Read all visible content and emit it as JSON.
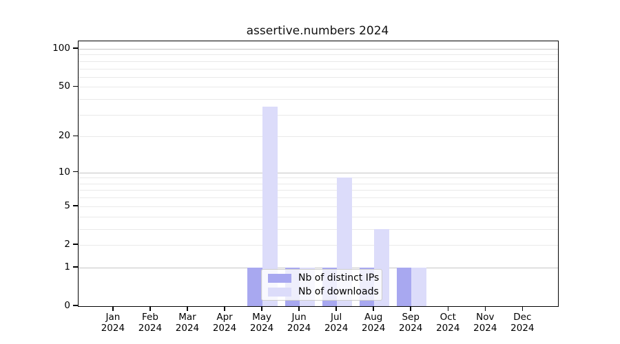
{
  "title": "assertive.numbers 2024",
  "chart_data": {
    "type": "bar",
    "title": "assertive.numbers 2024",
    "scale": "log10(1+y)",
    "categories": [
      "Jan",
      "Feb",
      "Mar",
      "Apr",
      "May",
      "Jun",
      "Jul",
      "Aug",
      "Sep",
      "Oct",
      "Nov",
      "Dec"
    ],
    "year": "2024",
    "series": [
      {
        "name": "Nb of distinct IPs",
        "values": [
          0,
          0,
          0,
          0,
          1,
          1,
          1,
          1,
          1,
          0,
          0,
          0
        ]
      },
      {
        "name": "Nb of downloads",
        "values": [
          0,
          0,
          0,
          0,
          35,
          1,
          9,
          3,
          1,
          0,
          0,
          0
        ]
      }
    ],
    "yticks": [
      0,
      1,
      2,
      5,
      10,
      20,
      50,
      100
    ],
    "grid_major": [
      1,
      10,
      100
    ],
    "grid_minor": [
      2,
      3,
      4,
      5,
      6,
      7,
      8,
      9,
      20,
      30,
      40,
      50,
      60,
      70,
      80,
      90
    ],
    "ylim": [
      0,
      114
    ],
    "xlabel": "",
    "ylabel": "",
    "legend_position": "lower center",
    "grid": "on"
  },
  "colors": {
    "ips": "#a8a8f0",
    "downloads": "#dcdcfa",
    "grid_major": "#c4c4c4",
    "grid_minor": "#e9e9e9",
    "spine": "#000000",
    "background": "#ffffff"
  },
  "legend": {
    "items": [
      {
        "label": "Nb of distinct IPs"
      },
      {
        "label": "Nb of downloads"
      }
    ]
  }
}
